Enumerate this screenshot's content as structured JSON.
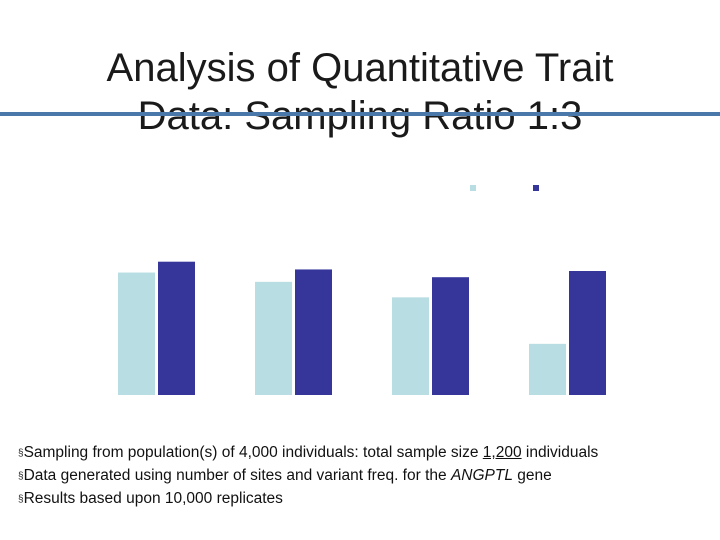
{
  "slide": {
    "title_line1": "Analysis of Quantitative Trait",
    "title_line2": "Data: Sampling Ratio 1:3"
  },
  "colors": {
    "title_rule": "#4a78aa",
    "series_light": "#b8dde2",
    "series_dark": "#36369a"
  },
  "chart_data": {
    "type": "bar",
    "categories": [
      "",
      "",
      "",
      ""
    ],
    "series": [
      {
        "values": [
          0.79,
          0.73,
          0.63,
          0.33
        ]
      },
      {
        "values": [
          0.86,
          0.81,
          0.76,
          0.8
        ]
      }
    ],
    "ylim": [
      0,
      1
    ],
    "legend": "top-right",
    "grid": false
  },
  "bullets": {
    "marker": "§",
    "b1_pre": "Sampling from population(s) of 4,000 individuals: total sample size ",
    "b1_u": "1,200",
    "b1_post": " individuals",
    "b2_pre": "Data generated using number of sites and variant freq. for the ",
    "b2_i": "ANGPTL",
    "b2_post": " gene",
    "b3": "Results based upon 10,000 replicates"
  }
}
